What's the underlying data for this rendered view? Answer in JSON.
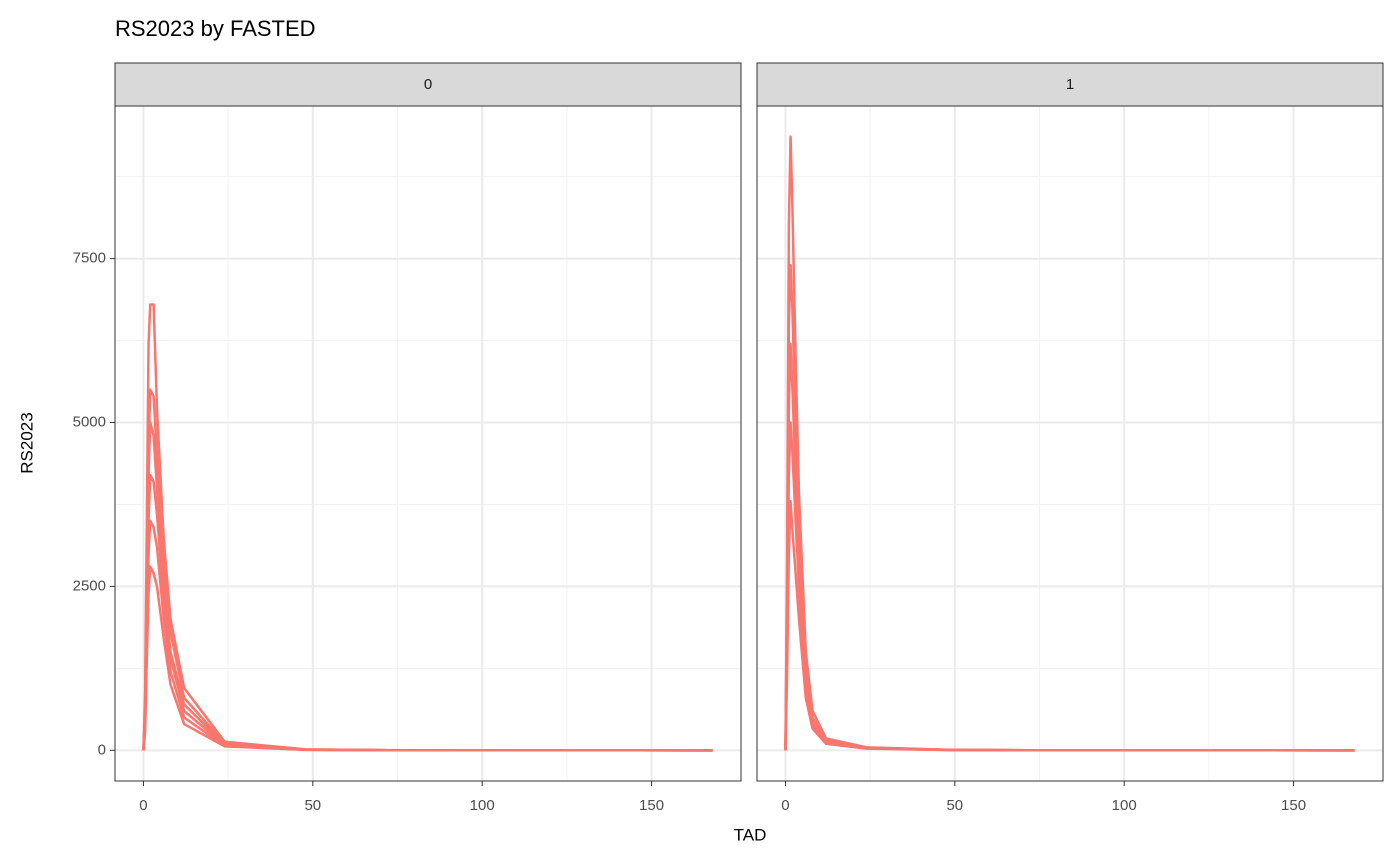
{
  "chart_data": {
    "type": "line",
    "title": "RS2023 by FASTED",
    "x_label": "TAD",
    "y_label": "RS2023",
    "color": "#F8766D",
    "grid": true,
    "xlim": [
      -8.4,
      176.4
    ],
    "ylim": [
      -468,
      9828
    ],
    "xticks": [
      0,
      50,
      100,
      150
    ],
    "yticks": [
      0,
      2500,
      5000,
      7500
    ],
    "x_minor_breaks": [
      25,
      75,
      125
    ],
    "y_minor_breaks": [
      1250,
      3750,
      6250,
      8750
    ],
    "x": [
      0,
      0.5,
      1,
      1.5,
      2,
      3,
      4,
      6,
      8,
      12,
      24,
      48,
      72,
      168
    ],
    "panels": [
      {
        "label": "0",
        "series": [
          {
            "values": [
              0,
              900,
              3500,
              6200,
              6800,
              6800,
              5200,
              3200,
              2000,
              950,
              130,
              15,
              3,
              0
            ]
          },
          {
            "values": [
              0,
              700,
              2800,
              4600,
              5500,
              5400,
              4500,
              2800,
              1800,
              800,
              110,
              12,
              2,
              0
            ]
          },
          {
            "values": [
              0,
              600,
              2500,
              4200,
              5000,
              4800,
              4000,
              2500,
              1500,
              700,
              90,
              10,
              2,
              0
            ]
          },
          {
            "values": [
              0,
              500,
              2000,
              3500,
              4200,
              4100,
              3600,
              2300,
              1400,
              600,
              80,
              9,
              2,
              0
            ]
          },
          {
            "values": [
              0,
              400,
              1700,
              3000,
              3500,
              3400,
              3100,
              2000,
              1200,
              500,
              70,
              8,
              1,
              0
            ]
          },
          {
            "values": [
              0,
              300,
              1400,
              2400,
              2800,
              2700,
              2500,
              1700,
              1000,
              400,
              60,
              7,
              1,
              0
            ]
          }
        ]
      },
      {
        "label": "1",
        "series": [
          {
            "values": [
              0,
              3000,
              8000,
              9360,
              8400,
              6000,
              3900,
              1500,
              600,
              180,
              45,
              8,
              2,
              0
            ]
          },
          {
            "values": [
              0,
              2500,
              6500,
              7400,
              6800,
              5000,
              3500,
              1300,
              500,
              150,
              40,
              7,
              2,
              0
            ]
          },
          {
            "values": [
              0,
              2000,
              5200,
              6200,
              5600,
              4200,
              3000,
              1100,
              420,
              130,
              35,
              6,
              1,
              0
            ]
          },
          {
            "values": [
              0,
              1600,
              4200,
              5000,
              4600,
              3500,
              2500,
              950,
              380,
              110,
              30,
              5,
              1,
              0
            ]
          },
          {
            "values": [
              0,
              1200,
              3000,
              3800,
              3400,
              2700,
              2000,
              800,
              330,
              100,
              25,
              5,
              1,
              0
            ]
          }
        ]
      }
    ]
  }
}
